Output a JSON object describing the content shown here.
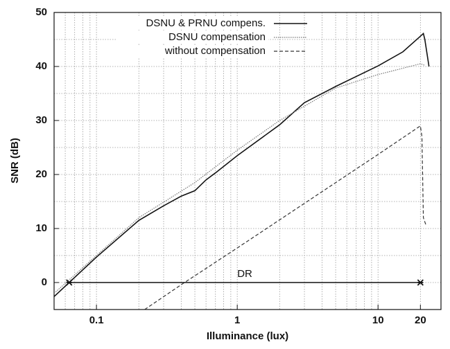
{
  "chart_data": {
    "type": "line",
    "xlabel": "Illuminance (lux)",
    "ylabel": "SNR (dB)",
    "xscale": "log",
    "xlim": [
      0.05,
      28
    ],
    "ylim": [
      -5,
      50
    ],
    "xticks": [
      0.1,
      1,
      10,
      20
    ],
    "yticks": [
      0,
      10,
      20,
      30,
      40,
      50
    ],
    "xgrid_minor": [
      0.06,
      0.07,
      0.08,
      0.09,
      0.2,
      0.3,
      0.4,
      0.5,
      0.6,
      0.7,
      0.8,
      0.9,
      2,
      3,
      4,
      5,
      6,
      7,
      8,
      9
    ],
    "ygrid_minor": [
      5,
      15,
      25,
      35,
      45
    ],
    "grid": true,
    "legend": "top",
    "series": [
      {
        "name": "DSNU & PRNU compens.",
        "color": "#111111",
        "dash": "solid",
        "x": [
          0.05,
          0.1,
          0.2,
          0.3,
          0.4,
          0.5,
          0.6,
          0.7,
          1,
          2,
          3,
          5,
          10,
          15,
          20,
          21,
          21.5,
          23
        ],
        "values": [
          -2.6,
          4.7,
          11.5,
          14.2,
          16,
          17,
          19,
          20.3,
          23.5,
          29.2,
          33.3,
          36.3,
          40.1,
          42.7,
          45.6,
          46.1,
          45,
          40
        ]
      },
      {
        "name": "DSNU compensation",
        "color": "#777777",
        "dash": "dotted",
        "x": [
          0.05,
          0.1,
          0.2,
          0.5,
          1,
          2,
          5,
          10,
          20,
          21.5
        ],
        "values": [
          -2,
          5,
          12,
          18.5,
          24.5,
          30,
          36,
          38.5,
          40.5,
          40.2
        ]
      },
      {
        "name": "without compensation",
        "color": "#333333",
        "dash": "dashed",
        "x": [
          0.22,
          0.4,
          1,
          10,
          20,
          20.5,
          21,
          22
        ],
        "values": [
          -5,
          -0.4,
          6.4,
          23.7,
          29,
          27,
          12,
          10.5
        ]
      }
    ],
    "annotation": {
      "label": "DR",
      "x": [
        0.064,
        20
      ],
      "y": 0
    }
  }
}
